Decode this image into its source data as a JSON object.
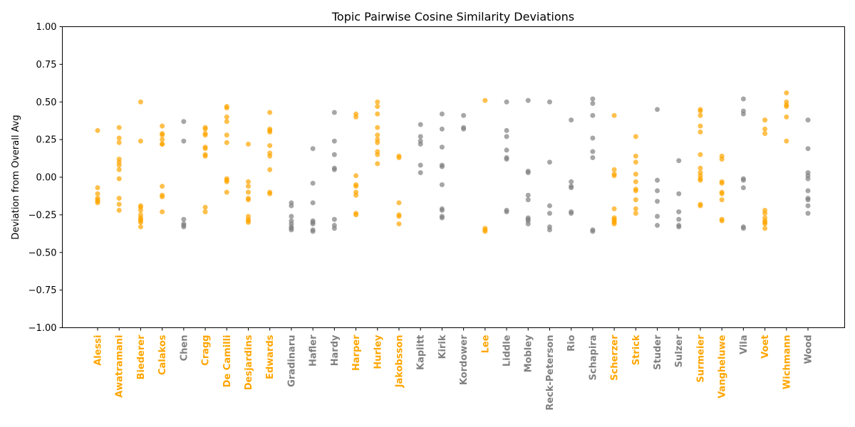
{
  "chart_data": {
    "type": "scatter",
    "title": "Topic Pairwise Cosine Similarity Deviations",
    "xlabel": "",
    "ylabel": "Deviation from Overall Avg",
    "ylim": [
      -1.0,
      1.0
    ],
    "yticks": [
      "−1.00",
      "−0.75",
      "−0.50",
      "−0.25",
      "0.00",
      "0.25",
      "0.50",
      "0.75",
      "1.00"
    ],
    "ytick_values": [
      -1.0,
      -0.75,
      -0.5,
      -0.25,
      0.0,
      0.25,
      0.5,
      0.75,
      1.0
    ],
    "grid": false,
    "legend": "none",
    "colors": {
      "highlight": "#ffa500",
      "default": "#808080"
    },
    "categories": [
      {
        "name": "Alessi",
        "highlight": true,
        "values": [
          0.31,
          -0.07,
          -0.11,
          -0.14,
          -0.15,
          -0.16,
          -0.17
        ]
      },
      {
        "name": "Awatramani",
        "highlight": true,
        "values": [
          0.33,
          0.26,
          0.23,
          0.12,
          0.1,
          0.08,
          0.05,
          -0.01,
          -0.14,
          -0.18,
          -0.22
        ]
      },
      {
        "name": "Biederer",
        "highlight": true,
        "values": [
          0.5,
          0.24,
          -0.19,
          -0.2,
          -0.22,
          -0.25,
          -0.27,
          -0.28,
          -0.29,
          -0.3,
          -0.33
        ]
      },
      {
        "name": "Calakos",
        "highlight": true,
        "values": [
          0.34,
          0.29,
          0.28,
          0.25,
          0.22,
          0.22,
          -0.06,
          -0.12,
          -0.13,
          -0.23
        ]
      },
      {
        "name": "Chen",
        "highlight": false,
        "values": [
          0.37,
          0.24,
          -0.28,
          -0.31,
          -0.32,
          -0.33
        ]
      },
      {
        "name": "Cragg",
        "highlight": true,
        "values": [
          0.33,
          0.32,
          0.29,
          0.28,
          0.2,
          0.19,
          0.15,
          0.14,
          -0.2,
          -0.23
        ]
      },
      {
        "name": "De Camilli",
        "highlight": true,
        "values": [
          0.47,
          0.46,
          0.4,
          0.37,
          0.28,
          0.23,
          -0.01,
          -0.02,
          -0.03,
          -0.1
        ]
      },
      {
        "name": "Desjardins",
        "highlight": true,
        "values": [
          0.22,
          -0.03,
          -0.06,
          -0.1,
          -0.14,
          -0.15,
          -0.26,
          -0.28,
          -0.29,
          -0.3
        ]
      },
      {
        "name": "Edwards",
        "highlight": true,
        "values": [
          0.43,
          0.32,
          0.31,
          0.3,
          0.21,
          0.16,
          0.14,
          0.05,
          -0.1,
          -0.11
        ]
      },
      {
        "name": "Gradinaru",
        "highlight": false,
        "values": [
          -0.17,
          -0.19,
          -0.26,
          -0.29,
          -0.31,
          -0.33,
          -0.34,
          -0.35
        ]
      },
      {
        "name": "Hafler",
        "highlight": false,
        "values": [
          0.19,
          -0.04,
          -0.17,
          -0.29,
          -0.3,
          -0.31,
          -0.35,
          -0.36
        ]
      },
      {
        "name": "Hardy",
        "highlight": false,
        "values": [
          0.43,
          0.24,
          0.15,
          0.06,
          0.05,
          -0.28,
          -0.32,
          -0.34
        ]
      },
      {
        "name": "Harper",
        "highlight": true,
        "values": [
          0.42,
          0.4,
          0.01,
          -0.05,
          -0.06,
          -0.1,
          -0.12,
          -0.24,
          -0.25
        ]
      },
      {
        "name": "Hurley",
        "highlight": true,
        "values": [
          0.5,
          0.47,
          0.42,
          0.33,
          0.28,
          0.25,
          0.23,
          0.17,
          0.15,
          0.09
        ]
      },
      {
        "name": "Jakobsson",
        "highlight": true,
        "values": [
          0.14,
          0.13,
          -0.17,
          -0.25,
          -0.26,
          -0.31
        ]
      },
      {
        "name": "Kaplitt",
        "highlight": false,
        "values": [
          0.35,
          0.27,
          0.24,
          0.22,
          0.08,
          0.03
        ]
      },
      {
        "name": "Kirik",
        "highlight": false,
        "values": [
          0.42,
          0.32,
          0.2,
          0.08,
          0.07,
          -0.05,
          -0.21,
          -0.22,
          -0.26,
          -0.27
        ]
      },
      {
        "name": "Kordower",
        "highlight": false,
        "values": [
          0.41,
          0.32,
          0.33
        ]
      },
      {
        "name": "Lee",
        "highlight": true,
        "values": [
          0.51,
          -0.34,
          -0.35,
          -0.36
        ]
      },
      {
        "name": "Liddle",
        "highlight": false,
        "values": [
          0.5,
          0.31,
          0.27,
          0.18,
          0.13,
          0.12,
          -0.22,
          -0.23
        ]
      },
      {
        "name": "Mobley",
        "highlight": false,
        "values": [
          0.51,
          0.04,
          0.03,
          -0.12,
          -0.15,
          -0.27,
          -0.28,
          -0.29,
          -0.31
        ]
      },
      {
        "name": "Reck-Peterson",
        "highlight": false,
        "values": [
          0.5,
          0.1,
          -0.19,
          -0.24,
          -0.33,
          -0.35
        ]
      },
      {
        "name": "Rio",
        "highlight": false,
        "values": [
          0.38,
          -0.03,
          -0.06,
          -0.07,
          -0.23,
          -0.24
        ]
      },
      {
        "name": "Schapira",
        "highlight": false,
        "values": [
          0.52,
          0.49,
          0.41,
          0.26,
          0.17,
          0.13,
          -0.35,
          -0.36
        ]
      },
      {
        "name": "Scherzer",
        "highlight": true,
        "values": [
          0.41,
          0.05,
          0.02,
          0.01,
          -0.21,
          -0.27,
          -0.28,
          -0.29,
          -0.3,
          -0.31
        ]
      },
      {
        "name": "Strick",
        "highlight": true,
        "values": [
          0.27,
          0.14,
          0.1,
          0.02,
          -0.03,
          -0.08,
          -0.09,
          -0.15,
          -0.21,
          -0.24
        ]
      },
      {
        "name": "Studer",
        "highlight": false,
        "values": [
          0.45,
          -0.02,
          -0.09,
          -0.16,
          -0.26,
          -0.32
        ]
      },
      {
        "name": "Sulzer",
        "highlight": false,
        "values": [
          0.11,
          -0.11,
          -0.23,
          -0.28,
          -0.32,
          -0.33
        ]
      },
      {
        "name": "Surmeier",
        "highlight": true,
        "values": [
          0.45,
          0.44,
          0.41,
          0.34,
          0.3,
          0.15,
          0.06,
          0.03,
          0.01,
          -0.01,
          -0.02,
          -0.18,
          -0.19
        ]
      },
      {
        "name": "Vangheluwe",
        "highlight": true,
        "values": [
          0.14,
          0.12,
          -0.03,
          -0.04,
          -0.1,
          -0.11,
          -0.15,
          -0.28,
          -0.29
        ]
      },
      {
        "name": "Vila",
        "highlight": false,
        "values": [
          0.52,
          0.44,
          0.42,
          -0.01,
          -0.02,
          -0.07,
          -0.33,
          -0.34
        ]
      },
      {
        "name": "Voet",
        "highlight": true,
        "values": [
          0.38,
          0.32,
          0.29,
          -0.22,
          -0.24,
          -0.27,
          -0.29,
          -0.3,
          -0.31,
          -0.34
        ]
      },
      {
        "name": "Wichmann",
        "highlight": true,
        "values": [
          0.56,
          0.5,
          0.48,
          0.47,
          0.4,
          0.24
        ]
      },
      {
        "name": "Wood",
        "highlight": false,
        "values": [
          0.38,
          0.19,
          0.03,
          0.01,
          -0.01,
          -0.09,
          -0.14,
          -0.15,
          -0.19,
          -0.24
        ]
      }
    ]
  }
}
